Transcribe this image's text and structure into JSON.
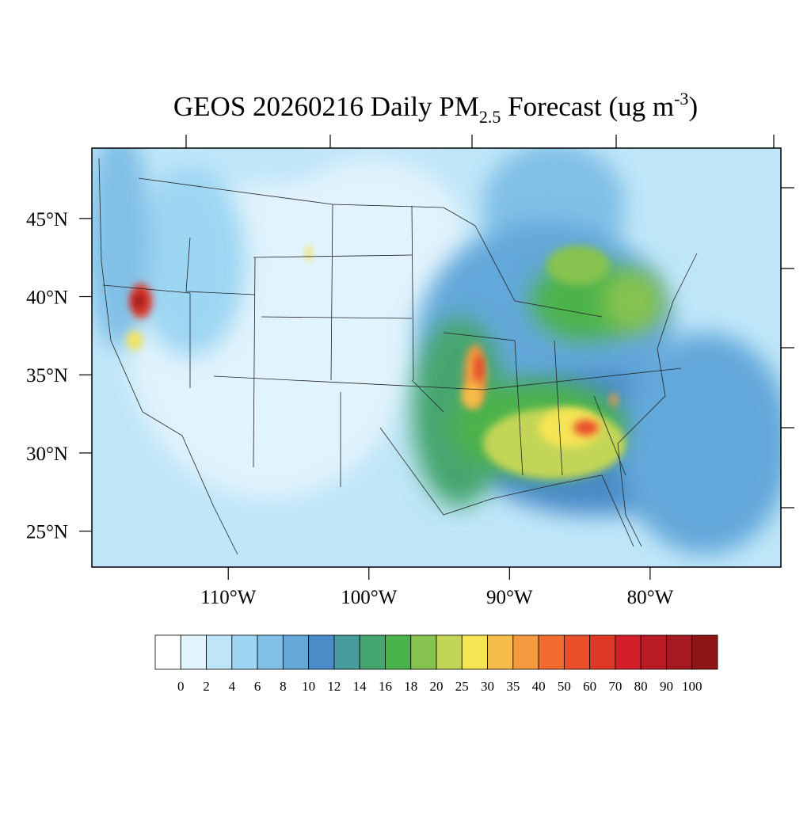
{
  "map": {
    "title": {
      "main": "GEOS 20260216 Daily PM",
      "sub": "2.5",
      "rest": " Forecast (ug m",
      "sup": "-3",
      "end": ")"
    },
    "xlim": [
      -119.7,
      -70.7
    ],
    "ylim": [
      22.7,
      49.5
    ],
    "xticks": [
      {
        "value": -110,
        "label": "110°W"
      },
      {
        "value": -100,
        "label": "100°W"
      },
      {
        "value": -90,
        "label": "90°W"
      },
      {
        "value": -80,
        "label": "80°W"
      }
    ],
    "yticks": [
      {
        "value": 45,
        "label": "45°N"
      },
      {
        "value": 40,
        "label": "40°N"
      },
      {
        "value": 35,
        "label": "35°N"
      },
      {
        "value": 30,
        "label": "30°N"
      },
      {
        "value": 25,
        "label": "25°N"
      }
    ],
    "colorbar": {
      "colors": [
        "#ffffff",
        "#e1f3fc",
        "#bfe6f8",
        "#9dd6f3",
        "#80bfe6",
        "#64a8da",
        "#4a8bc8",
        "#479c9c",
        "#46a66f",
        "#4bb34b",
        "#86c24e",
        "#c3d556",
        "#f5e454",
        "#f6bd4a",
        "#f5993e",
        "#f26c2f",
        "#e94f2b",
        "#de3827",
        "#d21f2a",
        "#b91c25",
        "#a51a20",
        "#8f1519"
      ],
      "levels": [
        0,
        2,
        4,
        6,
        8,
        10,
        12,
        14,
        16,
        18,
        20,
        25,
        30,
        35,
        40,
        50,
        60,
        70,
        80,
        90,
        100
      ]
    }
  }
}
